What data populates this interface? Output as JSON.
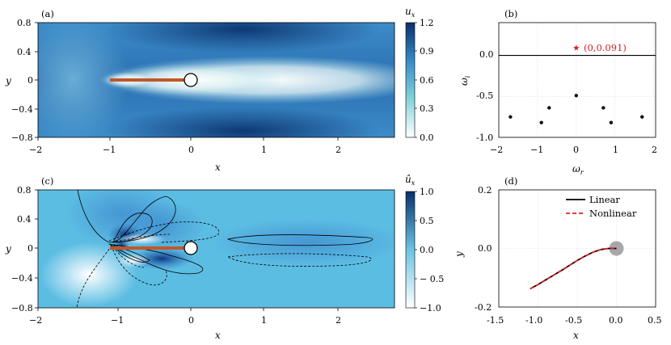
{
  "panels": {
    "a": {
      "label": "(a)",
      "xlabel": "x",
      "ylabel": "y",
      "xticks": [
        "−2",
        "−1",
        "0",
        "1",
        "2"
      ],
      "yticks": [
        "0.8",
        "0.4",
        "0",
        "−0.4",
        "−0.8"
      ],
      "colorbar": {
        "title": "u",
        "subscript": "x",
        "ticks": [
          "1.2",
          "0.9",
          "0.6",
          "0.3",
          "0.0"
        ]
      }
    },
    "b": {
      "label": "(b)",
      "xlabel": "ω",
      "xlabel_sub": "r",
      "ylabel": "ω",
      "ylabel_sub": "i",
      "xticks": [
        "−2",
        "−1",
        "0",
        "1",
        "2"
      ],
      "yticks": [
        "0.0",
        "-0.5",
        "-1.0"
      ],
      "annotation": "(0,0.091)"
    },
    "c": {
      "label": "(c)",
      "xlabel": "x",
      "ylabel": "y",
      "xticks": [
        "−2",
        "−1",
        "0",
        "1",
        "2"
      ],
      "yticks": [
        "0.8",
        "0.4",
        "0",
        "−0.4",
        "−0.8"
      ],
      "colorbar": {
        "title": "û",
        "subscript": "x",
        "ticks": [
          "1.0",
          "0.5",
          "0.0",
          "− 0.5",
          "−1.0"
        ]
      }
    },
    "d": {
      "label": "(d)",
      "xlabel": "x",
      "ylabel": "y",
      "xticks": [
        "-1.5",
        "-1.0",
        "-0.5",
        "0.0",
        "0.5"
      ],
      "yticks": [
        "0.2",
        "0.0",
        "-0.2"
      ],
      "legend": [
        "Linear",
        "Nonlinear"
      ]
    }
  },
  "colors": {
    "colormap_dark": "#08306b",
    "colormap_light": "#ffffff",
    "plate": "#c0582a",
    "eigen_marker": "#111111",
    "unstable_marker": "#e01e1e",
    "linear": "#000000",
    "nonlinear": "#e32020",
    "cylinder_d": "#a8a8a8"
  },
  "chart_data": [
    {
      "panel": "b",
      "type": "scatter",
      "xlabel": "ω_r",
      "ylabel": "ω_i",
      "xlim": [
        -2,
        2.05
      ],
      "ylim": [
        -1.0,
        0.4
      ],
      "grid": true,
      "series": [
        {
          "marker": "dot",
          "x": [
            -1.7,
            -0.9,
            -0.7,
            0.0,
            0.7,
            0.9,
            1.7
          ],
          "y": [
            -0.75,
            -0.82,
            -0.64,
            -0.49,
            -0.64,
            -0.82,
            -0.75
          ]
        },
        {
          "marker": "star",
          "x": [
            0.0
          ],
          "y": [
            0.091
          ]
        }
      ],
      "reference_line_y": 0.0
    },
    {
      "panel": "d",
      "type": "line",
      "xlabel": "x",
      "ylabel": "y",
      "xlim": [
        -1.5,
        0.5
      ],
      "ylim": [
        -0.2,
        0.2
      ],
      "grid": true,
      "series": [
        {
          "name": "Linear",
          "style": "solid",
          "x": [
            -1.1,
            -1.0,
            -0.9,
            -0.8,
            -0.7,
            -0.6,
            -0.5,
            -0.4,
            -0.3,
            -0.2,
            -0.1,
            0.0
          ],
          "y": [
            -0.138,
            -0.123,
            -0.107,
            -0.091,
            -0.075,
            -0.058,
            -0.041,
            -0.026,
            -0.013,
            -0.004,
            0.0,
            0.0
          ]
        },
        {
          "name": "Nonlinear",
          "style": "dashed",
          "x": [
            -1.1,
            -1.0,
            -0.9,
            -0.8,
            -0.7,
            -0.6,
            -0.5,
            -0.4,
            -0.3,
            -0.2,
            -0.1,
            0.0
          ],
          "y": [
            -0.138,
            -0.123,
            -0.107,
            -0.091,
            -0.075,
            -0.058,
            -0.041,
            -0.026,
            -0.013,
            -0.004,
            0.0,
            0.0
          ]
        }
      ],
      "cylinder_center": [
        0.0,
        0.0
      ]
    }
  ]
}
